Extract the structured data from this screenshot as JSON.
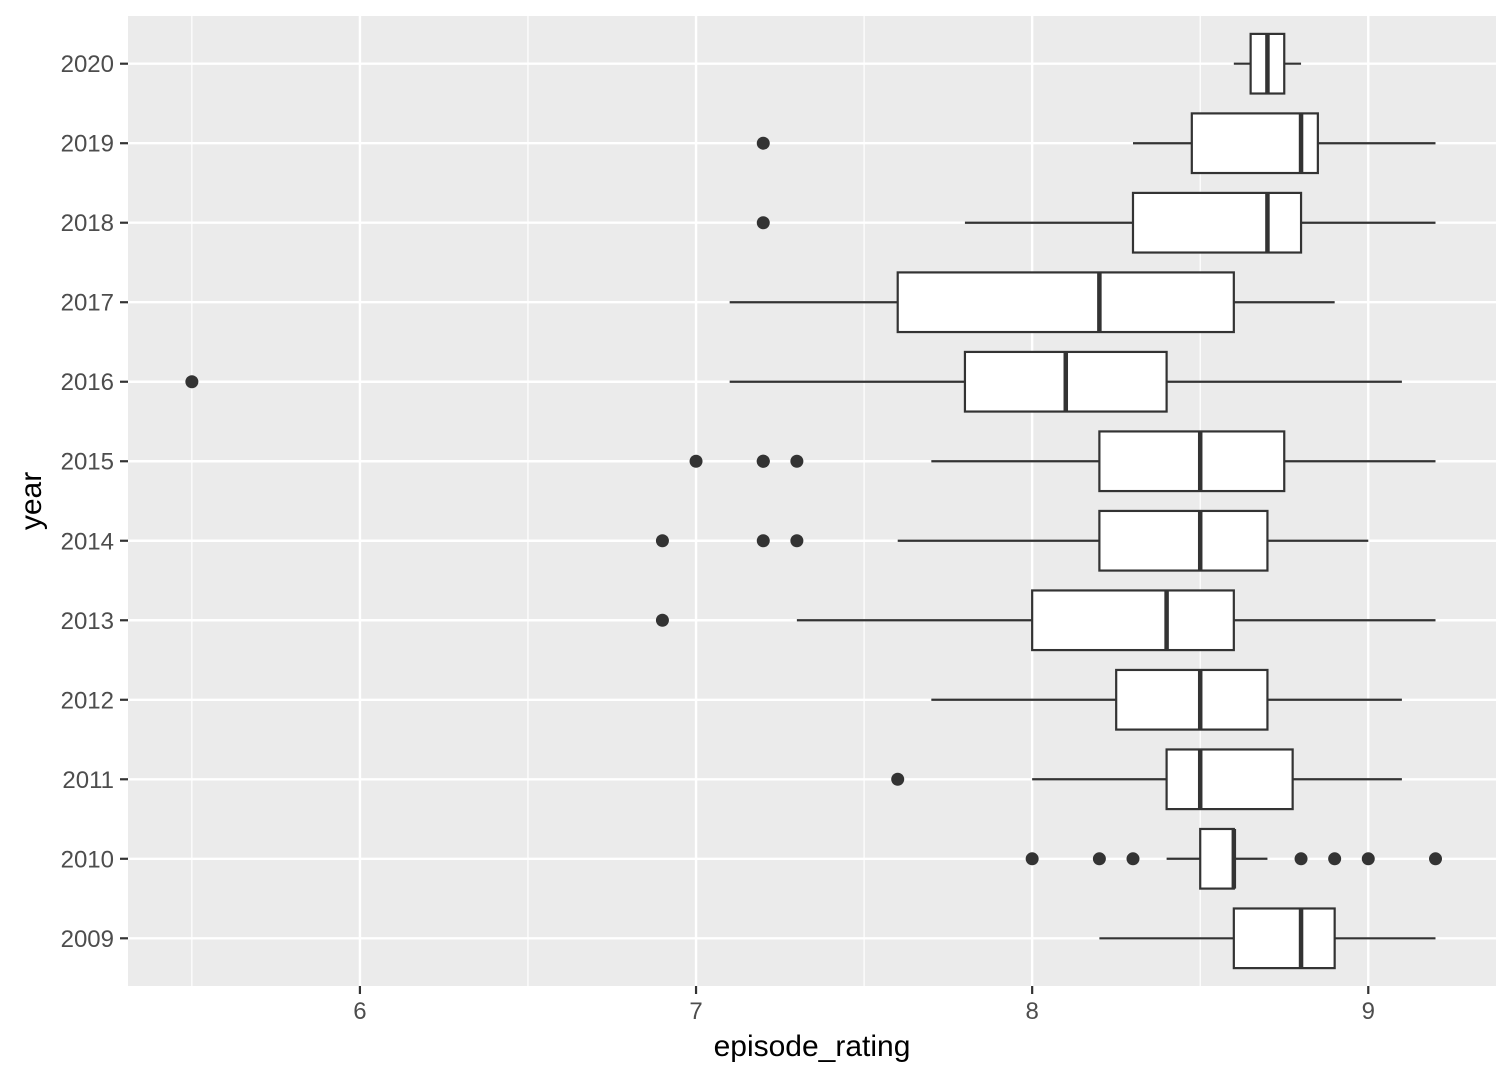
{
  "chart_data": {
    "type": "boxplot",
    "orientation": "horizontal",
    "xlabel": "episode_rating",
    "ylabel": "year",
    "xlim": [
      5.31,
      9.38
    ],
    "x_ticks": [
      6,
      7,
      8,
      9
    ],
    "x_tick_labels": [
      "6",
      "7",
      "8",
      "9"
    ],
    "grid": true,
    "colors": {
      "panel_background": "#ebebeb",
      "grid_major": "#ffffff",
      "box_fill": "#ffffff",
      "box_stroke": "#333333",
      "outlier": "#333333",
      "tick_text": "#4d4d4d"
    },
    "categories": [
      "2009",
      "2010",
      "2011",
      "2012",
      "2013",
      "2014",
      "2015",
      "2016",
      "2017",
      "2018",
      "2019",
      "2020"
    ],
    "boxes": [
      {
        "year": "2009",
        "whisker_low": 8.2,
        "q1": 8.6,
        "median": 8.8,
        "q3": 8.9,
        "whisker_high": 9.2,
        "outliers": []
      },
      {
        "year": "2010",
        "whisker_low": 8.4,
        "q1": 8.5,
        "median": 8.6,
        "q3": 8.6,
        "whisker_high": 8.7,
        "outliers": [
          8.0,
          8.2,
          8.3,
          8.8,
          8.9,
          9.0,
          9.2
        ]
      },
      {
        "year": "2011",
        "whisker_low": 8.0,
        "q1": 8.4,
        "median": 8.5,
        "q3": 8.775,
        "whisker_high": 9.1,
        "outliers": [
          7.6
        ]
      },
      {
        "year": "2012",
        "whisker_low": 7.7,
        "q1": 8.25,
        "median": 8.5,
        "q3": 8.7,
        "whisker_high": 9.1,
        "outliers": []
      },
      {
        "year": "2013",
        "whisker_low": 7.3,
        "q1": 8.0,
        "median": 8.4,
        "q3": 8.6,
        "whisker_high": 9.2,
        "outliers": [
          6.9
        ]
      },
      {
        "year": "2014",
        "whisker_low": 7.6,
        "q1": 8.2,
        "median": 8.5,
        "q3": 8.7,
        "whisker_high": 9.0,
        "outliers": [
          6.9,
          7.2,
          7.3
        ]
      },
      {
        "year": "2015",
        "whisker_low": 7.7,
        "q1": 8.2,
        "median": 8.5,
        "q3": 8.75,
        "whisker_high": 9.2,
        "outliers": [
          7.0,
          7.2,
          7.2,
          7.3
        ]
      },
      {
        "year": "2016",
        "whisker_low": 7.1,
        "q1": 7.8,
        "median": 8.1,
        "q3": 8.4,
        "whisker_high": 9.1,
        "outliers": [
          5.5
        ]
      },
      {
        "year": "2017",
        "whisker_low": 7.1,
        "q1": 7.6,
        "median": 8.2,
        "q3": 8.6,
        "whisker_high": 8.9,
        "outliers": []
      },
      {
        "year": "2018",
        "whisker_low": 7.8,
        "q1": 8.3,
        "median": 8.7,
        "q3": 8.8,
        "whisker_high": 9.2,
        "outliers": [
          7.2
        ]
      },
      {
        "year": "2019",
        "whisker_low": 8.3,
        "q1": 8.475,
        "median": 8.8,
        "q3": 8.85,
        "whisker_high": 9.2,
        "outliers": [
          7.2
        ]
      },
      {
        "year": "2020",
        "whisker_low": 8.6,
        "q1": 8.65,
        "median": 8.7,
        "q3": 8.75,
        "whisker_high": 8.8,
        "outliers": []
      }
    ]
  }
}
